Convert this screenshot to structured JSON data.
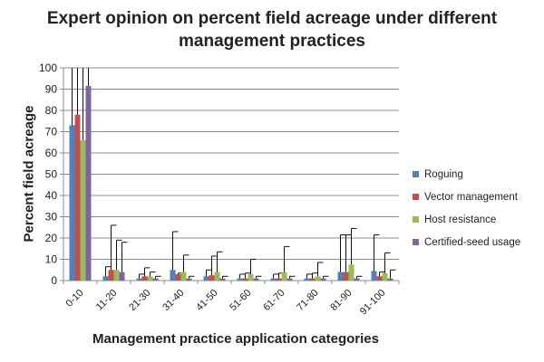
{
  "chart_data": {
    "type": "bar",
    "title_line1": "Expert opinion on percent field acreage under different",
    "title_line2": "management practices",
    "xlabel": "Management practice application categories",
    "ylabel": "Percent field acreage",
    "ylim": [
      0,
      100
    ],
    "ytick_step": 10,
    "grid": true,
    "legend_position": "right",
    "categories": [
      "0-10",
      "11-20",
      "21-30",
      "31-40",
      "41-50",
      "51-60",
      "61-70",
      "71-80",
      "81-90",
      "91-100"
    ],
    "series": [
      {
        "name": "Roguing",
        "color": "#4f81bd",
        "values": [
          73,
          2,
          1,
          5,
          2,
          1,
          1,
          1,
          4,
          4.5
        ],
        "errors": [
          32,
          4.5,
          2,
          18,
          3,
          2,
          2,
          2,
          17.5,
          17
        ]
      },
      {
        "name": "Vector management",
        "color": "#c0504d",
        "values": [
          78,
          5,
          2,
          3,
          2.5,
          1,
          1,
          1,
          4,
          2
        ],
        "errors": [
          28,
          21,
          4,
          0.5,
          9,
          2.5,
          2.5,
          2.5,
          17.5,
          2
        ]
      },
      {
        "name": "Host resistance",
        "color": "#9bbb59",
        "values": [
          66,
          5,
          2,
          4,
          4,
          3,
          4,
          2,
          7.5,
          3.5
        ],
        "errors": [
          40,
          14,
          2,
          8,
          9.5,
          7,
          12,
          6.5,
          17,
          9.5
        ]
      },
      {
        "name": "Certified-seed usage",
        "color": "#8064a2",
        "values": [
          91.5,
          4,
          1,
          1,
          1,
          1,
          1,
          1,
          1,
          1
        ],
        "errors": [
          20,
          14,
          1,
          1,
          1,
          1,
          1,
          1,
          1,
          4
        ]
      }
    ]
  }
}
